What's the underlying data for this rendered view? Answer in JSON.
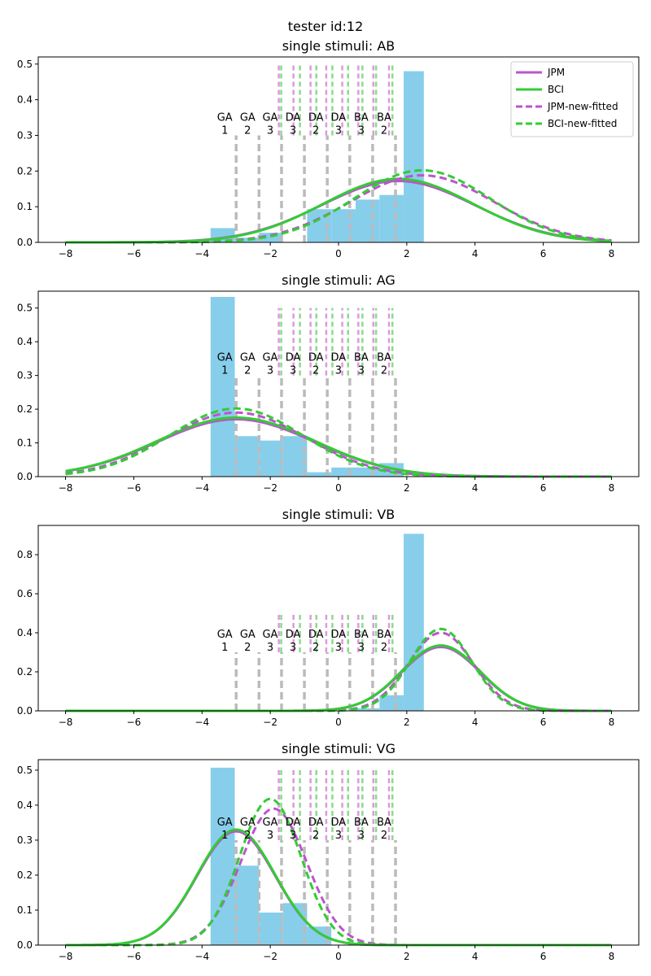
{
  "suptitle": "tester id:12",
  "legend": {
    "entries": [
      {
        "label": "JPM",
        "color": "#bb55cc",
        "style": "solid"
      },
      {
        "label": "BCI",
        "color": "#33cc33",
        "style": "solid"
      },
      {
        "label": "JPM-new-fitted",
        "color": "#bb55cc",
        "style": "dashed"
      },
      {
        "label": "BCI-new-fitted",
        "color": "#33cc33",
        "style": "dashed"
      }
    ]
  },
  "colors": {
    "histogram": "#87ceeb",
    "jpm": "#bb55cc",
    "bci": "#33cc33",
    "category_line": "#bbbbbb",
    "jpm_tick": "#dd99dd",
    "bci_tick": "#88dd88"
  },
  "category_labels": [
    {
      "name": "GA",
      "num": "1",
      "x": -3.0
    },
    {
      "name": "GA",
      "num": "2",
      "x": -2.33
    },
    {
      "name": "GA",
      "num": "3",
      "x": -1.67
    },
    {
      "name": "DA",
      "num": "3",
      "x": -1.0
    },
    {
      "name": "DA",
      "num": "2",
      "x": -0.33
    },
    {
      "name": "DA",
      "num": "3",
      "x": 0.33
    },
    {
      "name": "BA",
      "num": "3",
      "x": 1.0
    },
    {
      "name": "BA",
      "num": "2",
      "x": 1.67
    }
  ],
  "chart_data": [
    {
      "type": "bar",
      "title": "single stimuli: AB",
      "xlim": [
        -8.8,
        8.8
      ],
      "ylim": [
        0,
        0.52
      ],
      "xticks": [
        -8,
        -6,
        -4,
        -2,
        0,
        2,
        4,
        6,
        8
      ],
      "yticks": [
        0.0,
        0.1,
        0.2,
        0.3,
        0.4,
        0.5
      ],
      "category_label_y": 0.3,
      "category_line_top": 0.3,
      "fitted_tick_range": [
        0.3,
        0.5
      ],
      "jpm_ticks": [
        -1.75,
        -1.32,
        -0.82,
        -0.36,
        0.11,
        0.58,
        1.02,
        1.48
      ],
      "bci_ticks": [
        -1.68,
        -1.13,
        -0.65,
        -0.18,
        0.28,
        0.7,
        1.1,
        1.58
      ],
      "hist": {
        "edges": [
          -3.75,
          -3.04,
          -2.33,
          -1.63,
          -0.92,
          -0.21,
          0.5,
          1.2,
          1.91,
          2.5
        ],
        "values": [
          0.04,
          0.013,
          0.027,
          0.0,
          0.093,
          0.093,
          0.12,
          0.133,
          0.48
        ]
      },
      "curves": [
        {
          "name": "JPM",
          "style": "solid",
          "type": "gauss",
          "mu": 1.75,
          "sigma": 2.25,
          "amp": 0.172
        },
        {
          "name": "BCI",
          "style": "solid",
          "type": "gauss",
          "mu": 1.75,
          "sigma": 2.2,
          "amp": 0.178
        },
        {
          "name": "JPM-new-fitted",
          "style": "dashed",
          "type": "gauss",
          "mu": 2.45,
          "sigma": 2.1,
          "amp": 0.188
        },
        {
          "name": "BCI-new-fitted",
          "style": "dashed",
          "type": "gauss",
          "mu": 2.45,
          "sigma": 2.0,
          "amp": 0.202
        }
      ]
    },
    {
      "type": "bar",
      "title": "single stimuli: AG",
      "xlim": [
        -8.8,
        8.8
      ],
      "ylim": [
        0,
        0.55
      ],
      "xticks": [
        -8,
        -6,
        -4,
        -2,
        0,
        2,
        4,
        6,
        8
      ],
      "yticks": [
        0.0,
        0.1,
        0.2,
        0.3,
        0.4,
        0.5
      ],
      "category_label_y": 0.3,
      "category_line_top": 0.3,
      "fitted_tick_range": [
        0.3,
        0.5
      ],
      "jpm_ticks": [
        -1.75,
        -1.32,
        -0.82,
        -0.36,
        0.11,
        0.58,
        1.02,
        1.48
      ],
      "bci_ticks": [
        -1.68,
        -1.13,
        -0.65,
        -0.18,
        0.28,
        0.7,
        1.1,
        1.58
      ],
      "hist": {
        "edges": [
          -3.75,
          -3.04,
          -2.33,
          -1.63,
          -0.92,
          -0.21,
          0.5,
          1.2,
          1.91
        ],
        "values": [
          0.533,
          0.12,
          0.107,
          0.12,
          0.013,
          0.027,
          0.027,
          0.04
        ]
      },
      "curves": [
        {
          "name": "JPM",
          "style": "solid",
          "type": "gauss",
          "mu": -3.0,
          "sigma": 2.3,
          "amp": 0.17
        },
        {
          "name": "BCI",
          "style": "solid",
          "type": "gauss",
          "mu": -3.0,
          "sigma": 2.3,
          "amp": 0.175
        },
        {
          "name": "JPM-new-fitted",
          "style": "dashed",
          "type": "gauss",
          "mu": -3.0,
          "sigma": 2.05,
          "amp": 0.19
        },
        {
          "name": "BCI-new-fitted",
          "style": "dashed",
          "type": "gauss",
          "mu": -3.0,
          "sigma": 1.95,
          "amp": 0.202
        }
      ]
    },
    {
      "type": "bar",
      "title": "single stimuli: VB",
      "xlim": [
        -8.8,
        8.8
      ],
      "ylim": [
        0,
        0.95
      ],
      "xticks": [
        -8,
        -6,
        -4,
        -2,
        0,
        2,
        4,
        6,
        8
      ],
      "yticks": [
        0.0,
        0.2,
        0.4,
        0.6,
        0.8
      ],
      "category_label_y": 0.3,
      "category_line_top": 0.3,
      "fitted_tick_range": [
        0.3,
        0.5
      ],
      "jpm_ticks": [
        -1.75,
        -1.32,
        -0.82,
        -0.36,
        0.11,
        0.58,
        1.02,
        1.48
      ],
      "bci_ticks": [
        -1.68,
        -1.13,
        -0.65,
        -0.18,
        0.28,
        0.7,
        1.1,
        1.58
      ],
      "hist": {
        "edges": [
          0.5,
          1.2,
          1.91,
          2.5
        ],
        "values": [
          0.013,
          0.08,
          0.907
        ]
      },
      "curves": [
        {
          "name": "JPM",
          "style": "solid",
          "type": "gauss",
          "mu": 3.0,
          "sigma": 1.15,
          "amp": 0.327
        },
        {
          "name": "BCI",
          "style": "solid",
          "type": "gauss",
          "mu": 3.0,
          "sigma": 1.15,
          "amp": 0.335
        },
        {
          "name": "JPM-new-fitted",
          "style": "dashed",
          "type": "gauss",
          "mu": 3.0,
          "sigma": 0.95,
          "amp": 0.4
        },
        {
          "name": "BCI-new-fitted",
          "style": "dashed",
          "type": "gauss",
          "mu": 3.0,
          "sigma": 0.9,
          "amp": 0.42
        }
      ]
    },
    {
      "type": "bar",
      "title": "single stimuli: VG",
      "xlim": [
        -8.8,
        8.8
      ],
      "ylim": [
        0,
        0.53
      ],
      "xticks": [
        -8,
        -6,
        -4,
        -2,
        0,
        2,
        4,
        6,
        8
      ],
      "yticks": [
        0.0,
        0.1,
        0.2,
        0.3,
        0.4,
        0.5
      ],
      "category_label_y": 0.3,
      "category_line_top": 0.3,
      "fitted_tick_range": [
        0.3,
        0.5
      ],
      "jpm_ticks": [
        -1.75,
        -1.32,
        -0.82,
        -0.36,
        0.11,
        0.58,
        1.02,
        1.48
      ],
      "bci_ticks": [
        -1.68,
        -1.13,
        -0.65,
        -0.18,
        0.28,
        0.7,
        1.1,
        1.58
      ],
      "hist": {
        "edges": [
          -3.75,
          -3.04,
          -2.33,
          -1.63,
          -0.92,
          -0.21
        ],
        "values": [
          0.507,
          0.227,
          0.093,
          0.12,
          0.053
        ]
      },
      "curves": [
        {
          "name": "JPM",
          "style": "solid",
          "type": "gauss",
          "mu": -3.0,
          "sigma": 1.15,
          "amp": 0.325
        },
        {
          "name": "BCI",
          "style": "solid",
          "type": "gauss",
          "mu": -3.0,
          "sigma": 1.15,
          "amp": 0.33
        },
        {
          "name": "JPM-new-fitted",
          "style": "dashed",
          "type": "gauss",
          "mu": -1.9,
          "sigma": 0.97,
          "amp": 0.39
        },
        {
          "name": "BCI-new-fitted",
          "style": "dashed",
          "type": "gauss",
          "mu": -2.0,
          "sigma": 0.9,
          "amp": 0.418
        }
      ]
    }
  ]
}
